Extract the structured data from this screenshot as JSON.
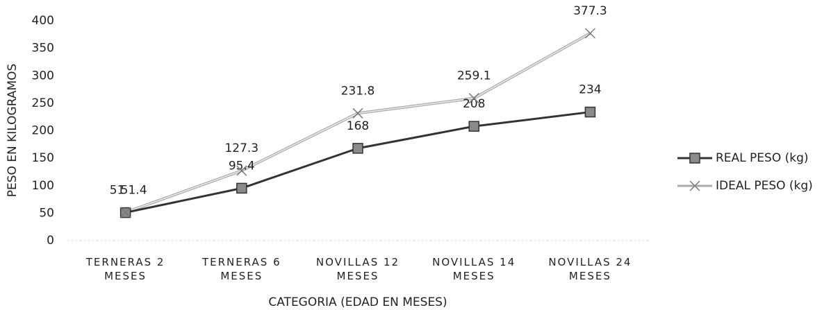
{
  "chart_data": {
    "type": "line",
    "x_label": "CATEGORIA (EDAD EN MESES)",
    "y_label": "PESO EN KILOGRAMOS",
    "categories": [
      "TERNERAS 2 MESES",
      "TERNERAS 6 MESES",
      "NOVILLAS 12 MESES",
      "NOVILLAS 14 MESES",
      "NOVILLAS 24 MESES"
    ],
    "series": [
      {
        "name": "REAL PESO (kg)",
        "color": "#333333",
        "marker_color": "#8a8a8a",
        "marker": "square",
        "values": [
          51,
          95.4,
          168,
          208,
          234
        ]
      },
      {
        "name": "IDEAL PESO (kg)",
        "color": "#aaaaaa",
        "marker_color": "#777777",
        "marker": "x",
        "values": [
          51.4,
          127.3,
          231.8,
          259.1,
          377.3
        ]
      }
    ],
    "ylim": [
      0,
      400
    ],
    "yticks": [
      0,
      50,
      100,
      150,
      200,
      250,
      300,
      350,
      400
    ],
    "grid": false,
    "legend": "right"
  }
}
